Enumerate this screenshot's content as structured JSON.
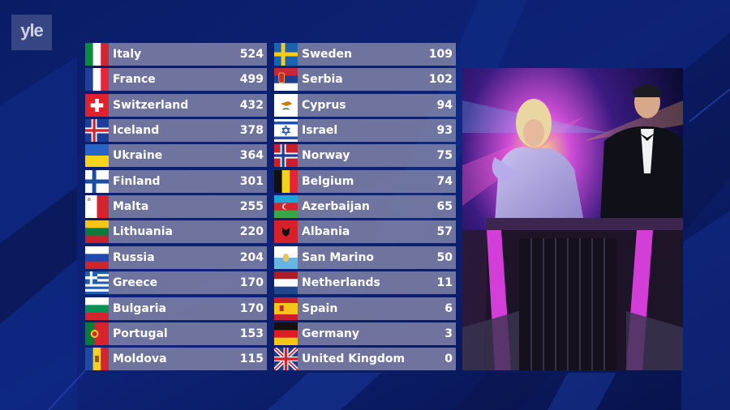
{
  "logo": "yle",
  "scoreboard": {
    "left": [
      {
        "country": "Italy",
        "points": "524",
        "flag": "italy"
      },
      {
        "country": "France",
        "points": "499",
        "flag": "france"
      },
      {
        "country": "Switzerland",
        "points": "432",
        "flag": "switzerland"
      },
      {
        "country": "Iceland",
        "points": "378",
        "flag": "iceland"
      },
      {
        "country": "Ukraine",
        "points": "364",
        "flag": "ukraine"
      },
      {
        "country": "Finland",
        "points": "301",
        "flag": "finland"
      },
      {
        "country": "Malta",
        "points": "255",
        "flag": "malta"
      },
      {
        "country": "Lithuania",
        "points": "220",
        "flag": "lithuania"
      },
      {
        "country": "Russia",
        "points": "204",
        "flag": "russia"
      },
      {
        "country": "Greece",
        "points": "170",
        "flag": "greece"
      },
      {
        "country": "Bulgaria",
        "points": "170",
        "flag": "bulgaria"
      },
      {
        "country": "Portugal",
        "points": "153",
        "flag": "portugal"
      },
      {
        "country": "Moldova",
        "points": "115",
        "flag": "moldova"
      }
    ],
    "right": [
      {
        "country": "Sweden",
        "points": "109",
        "flag": "sweden"
      },
      {
        "country": "Serbia",
        "points": "102",
        "flag": "serbia"
      },
      {
        "country": "Cyprus",
        "points": "94",
        "flag": "cyprus"
      },
      {
        "country": "Israel",
        "points": "93",
        "flag": "israel"
      },
      {
        "country": "Norway",
        "points": "75",
        "flag": "norway"
      },
      {
        "country": "Belgium",
        "points": "74",
        "flag": "belgium"
      },
      {
        "country": "Azerbaijan",
        "points": "65",
        "flag": "azerbaijan"
      },
      {
        "country": "Albania",
        "points": "57",
        "flag": "albania"
      },
      {
        "country": "San Marino",
        "points": "50",
        "flag": "san-marino"
      },
      {
        "country": "Netherlands",
        "points": "11",
        "flag": "netherlands"
      },
      {
        "country": "Spain",
        "points": "6",
        "flag": "spain"
      },
      {
        "country": "Germany",
        "points": "3",
        "flag": "germany"
      },
      {
        "country": "United Kingdom",
        "points": "0",
        "flag": "united-kingdom"
      }
    ]
  },
  "colors": {
    "background": "#0b1a5c",
    "row": "#7d80a5",
    "text": "#ffffff",
    "accent_magenta": "#c23bd6"
  }
}
